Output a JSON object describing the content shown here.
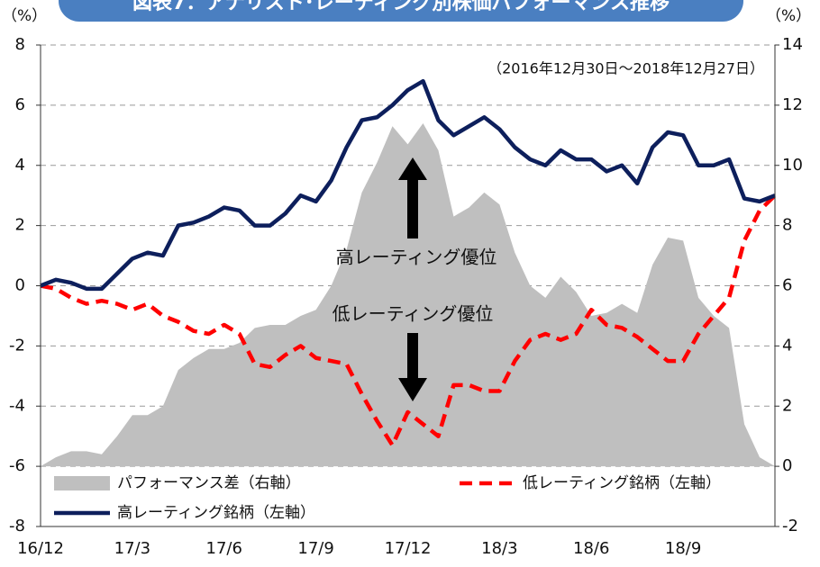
{
  "chart_data": {
    "type": "line",
    "title": "図表7：アナリスト･レーティング別株価パフォーマンス推移",
    "y_unit": "（%）",
    "y2_unit": "（%）",
    "period": "（2016年12月30日～2018年12月27日）",
    "annotations": [
      "高レーティング優位",
      "低レーティング優位"
    ],
    "categories": [
      "16/12",
      null,
      null,
      null,
      null,
      null,
      "17/3",
      null,
      null,
      null,
      null,
      null,
      "17/6",
      null,
      null,
      null,
      null,
      null,
      "17/9",
      null,
      null,
      null,
      null,
      null,
      "17/12",
      null,
      null,
      null,
      null,
      null,
      "18/3",
      null,
      null,
      null,
      null,
      null,
      "18/6",
      null,
      null,
      null,
      null,
      null,
      "18/9",
      null,
      null,
      null,
      null,
      null,
      null
    ],
    "ylim": [
      -8,
      8
    ],
    "yticks": [
      -8,
      -6,
      -4,
      -2,
      0,
      2,
      4,
      6,
      8
    ],
    "y2lim": [
      -2,
      14
    ],
    "y2ticks": [
      -2,
      0,
      2,
      4,
      6,
      8,
      10,
      12,
      14
    ],
    "grid": true,
    "series": [
      {
        "name": "パフォーマンス差（右軸）",
        "type": "area",
        "axis": "y2",
        "color": "#bfbfbf",
        "values": [
          0,
          0.3,
          0.5,
          0.5,
          0.4,
          1.0,
          1.7,
          1.7,
          2.0,
          3.2,
          3.6,
          3.9,
          3.9,
          4.1,
          4.6,
          4.7,
          4.7,
          5.0,
          5.2,
          6.0,
          7.2,
          9.1,
          10.1,
          11.3,
          10.7,
          11.4,
          10.5,
          8.3,
          8.6,
          9.1,
          8.7,
          7.1,
          6.0,
          5.6,
          6.3,
          5.8,
          5.0,
          5.1,
          5.4,
          5.1,
          6.7,
          7.6,
          7.5,
          5.6,
          5.0,
          4.6,
          1.4,
          0.3,
          0.0
        ]
      },
      {
        "name": "低レーティング銘柄（左軸）",
        "type": "dashed",
        "axis": "y",
        "color": "#ff0000",
        "values": [
          0,
          -0.1,
          -0.4,
          -0.6,
          -0.5,
          -0.6,
          -0.8,
          -0.6,
          -1.0,
          -1.2,
          -1.5,
          -1.6,
          -1.3,
          -1.6,
          -2.6,
          -2.7,
          -2.3,
          -2.0,
          -2.4,
          -2.5,
          -2.6,
          -3.6,
          -4.5,
          -5.3,
          -4.2,
          -4.6,
          -5.0,
          -3.3,
          -3.3,
          -3.5,
          -3.5,
          -2.5,
          -1.8,
          -1.6,
          -1.8,
          -1.6,
          -0.8,
          -1.3,
          -1.4,
          -1.7,
          -2.1,
          -2.5,
          -2.5,
          -1.6,
          -1.0,
          -0.4,
          1.5,
          2.5,
          3.0
        ]
      },
      {
        "name": "高レーティング銘柄（左軸）",
        "type": "line",
        "axis": "y",
        "color": "#0d1f5c",
        "values": [
          0,
          0.2,
          0.1,
          -0.1,
          -0.1,
          0.4,
          0.9,
          1.1,
          1.0,
          2.0,
          2.1,
          2.3,
          2.6,
          2.5,
          2.0,
          2.0,
          2.4,
          3.0,
          2.8,
          3.5,
          4.6,
          5.5,
          5.6,
          6.0,
          6.5,
          6.8,
          5.5,
          5.0,
          5.3,
          5.6,
          5.2,
          4.6,
          4.2,
          4.0,
          4.5,
          4.2,
          4.2,
          3.8,
          4.0,
          3.4,
          4.6,
          5.1,
          5.0,
          4.0,
          4.0,
          4.2,
          2.9,
          2.8,
          3.0
        ]
      }
    ]
  }
}
